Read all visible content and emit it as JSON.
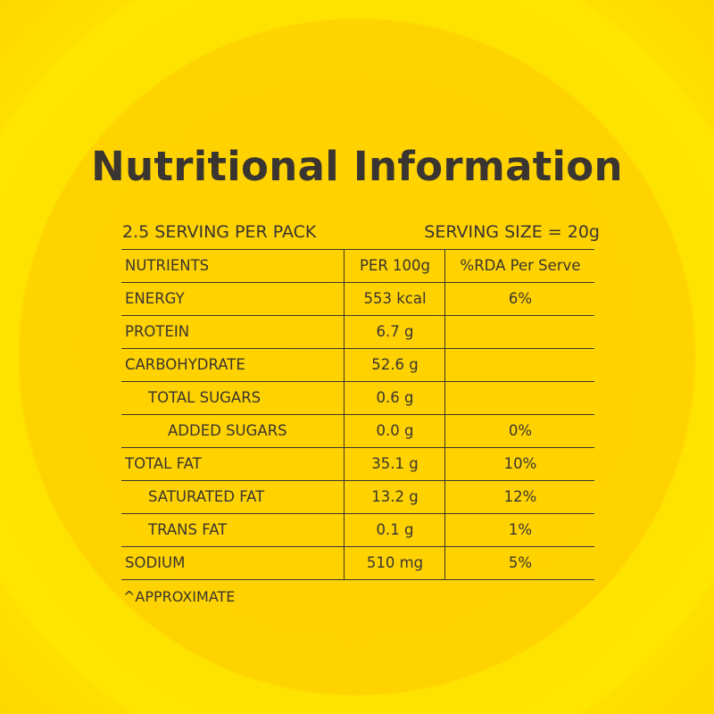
{
  "title": "Nutritional Information",
  "servings_per_pack": "2.5 SERVING PER PACK",
  "serving_size": "SERVING SIZE = 20g",
  "headers": [
    "NUTRIENTS",
    "PER 100g",
    "%RDA Per Serve"
  ],
  "rows": [
    {
      "name": "ENERGY",
      "per100": "553 kcal",
      "rda": "6%",
      "indent": 0
    },
    {
      "name": "PROTEIN",
      "per100": "6.7 g",
      "rda": "",
      "indent": 0
    },
    {
      "name": "CARBOHYDRATE",
      "per100": "52.6 g",
      "rda": "",
      "indent": 0
    },
    {
      "name": "TOTAL SUGARS",
      "per100": "0.6 g",
      "rda": "",
      "indent": 1
    },
    {
      "name": "ADDED SUGARS",
      "per100": "0.0 g",
      "rda": "0%",
      "indent": 2
    },
    {
      "name": "TOTAL FAT",
      "per100": "35.1 g",
      "rda": "10%",
      "indent": 0
    },
    {
      "name": "SATURATED FAT",
      "per100": "13.2 g",
      "rda": "12%",
      "indent": 1
    },
    {
      "name": "TRANS FAT",
      "per100": "0.1 g",
      "rda": "1%",
      "indent": 1
    },
    {
      "name": "SODIUM",
      "per100": "510 mg",
      "rda": "5%",
      "indent": 0
    }
  ],
  "footnote": "^APPROXIMATE"
}
